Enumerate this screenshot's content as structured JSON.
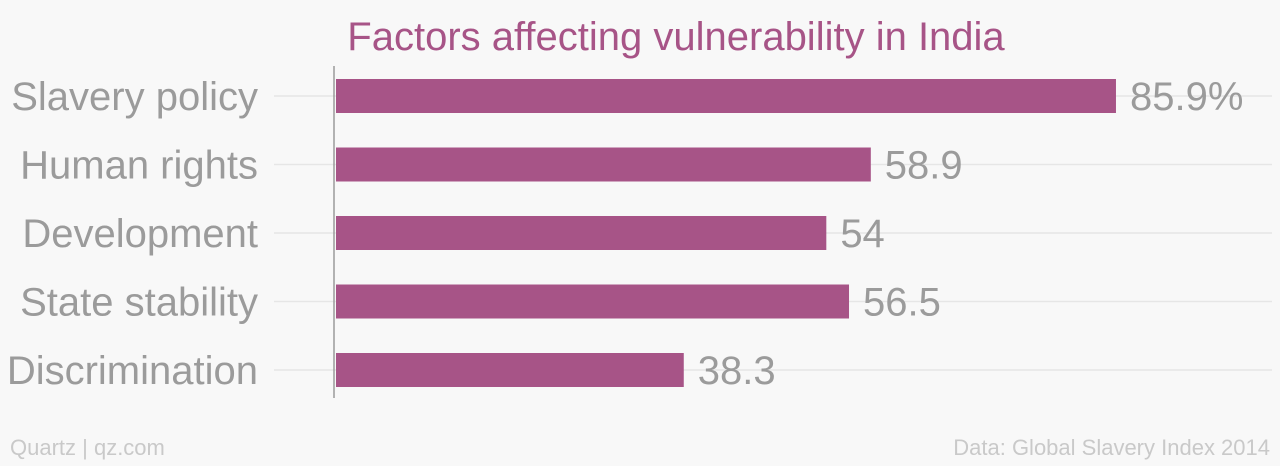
{
  "chart_data": {
    "type": "bar",
    "orientation": "horizontal",
    "title": "Factors affecting vulnerability in India",
    "categories": [
      "Slavery policy",
      "Human rights",
      "Development",
      "State stability",
      "Discrimination"
    ],
    "values": [
      85.9,
      58.9,
      54,
      56.5,
      38.3
    ],
    "value_labels": [
      "85.9%",
      "58.9",
      "54",
      "56.5",
      "38.3"
    ],
    "xlim": [
      0,
      100
    ],
    "grid": true,
    "bar_color": "#a75487"
  },
  "footer": {
    "brand": "Quartz | qz.com",
    "source": "Data: Global Slavery Index 2014"
  },
  "colors": {
    "title": "#a75487",
    "labels": "#9b9b9b",
    "footer": "#c9c9c9",
    "background": "#f8f8f8"
  }
}
